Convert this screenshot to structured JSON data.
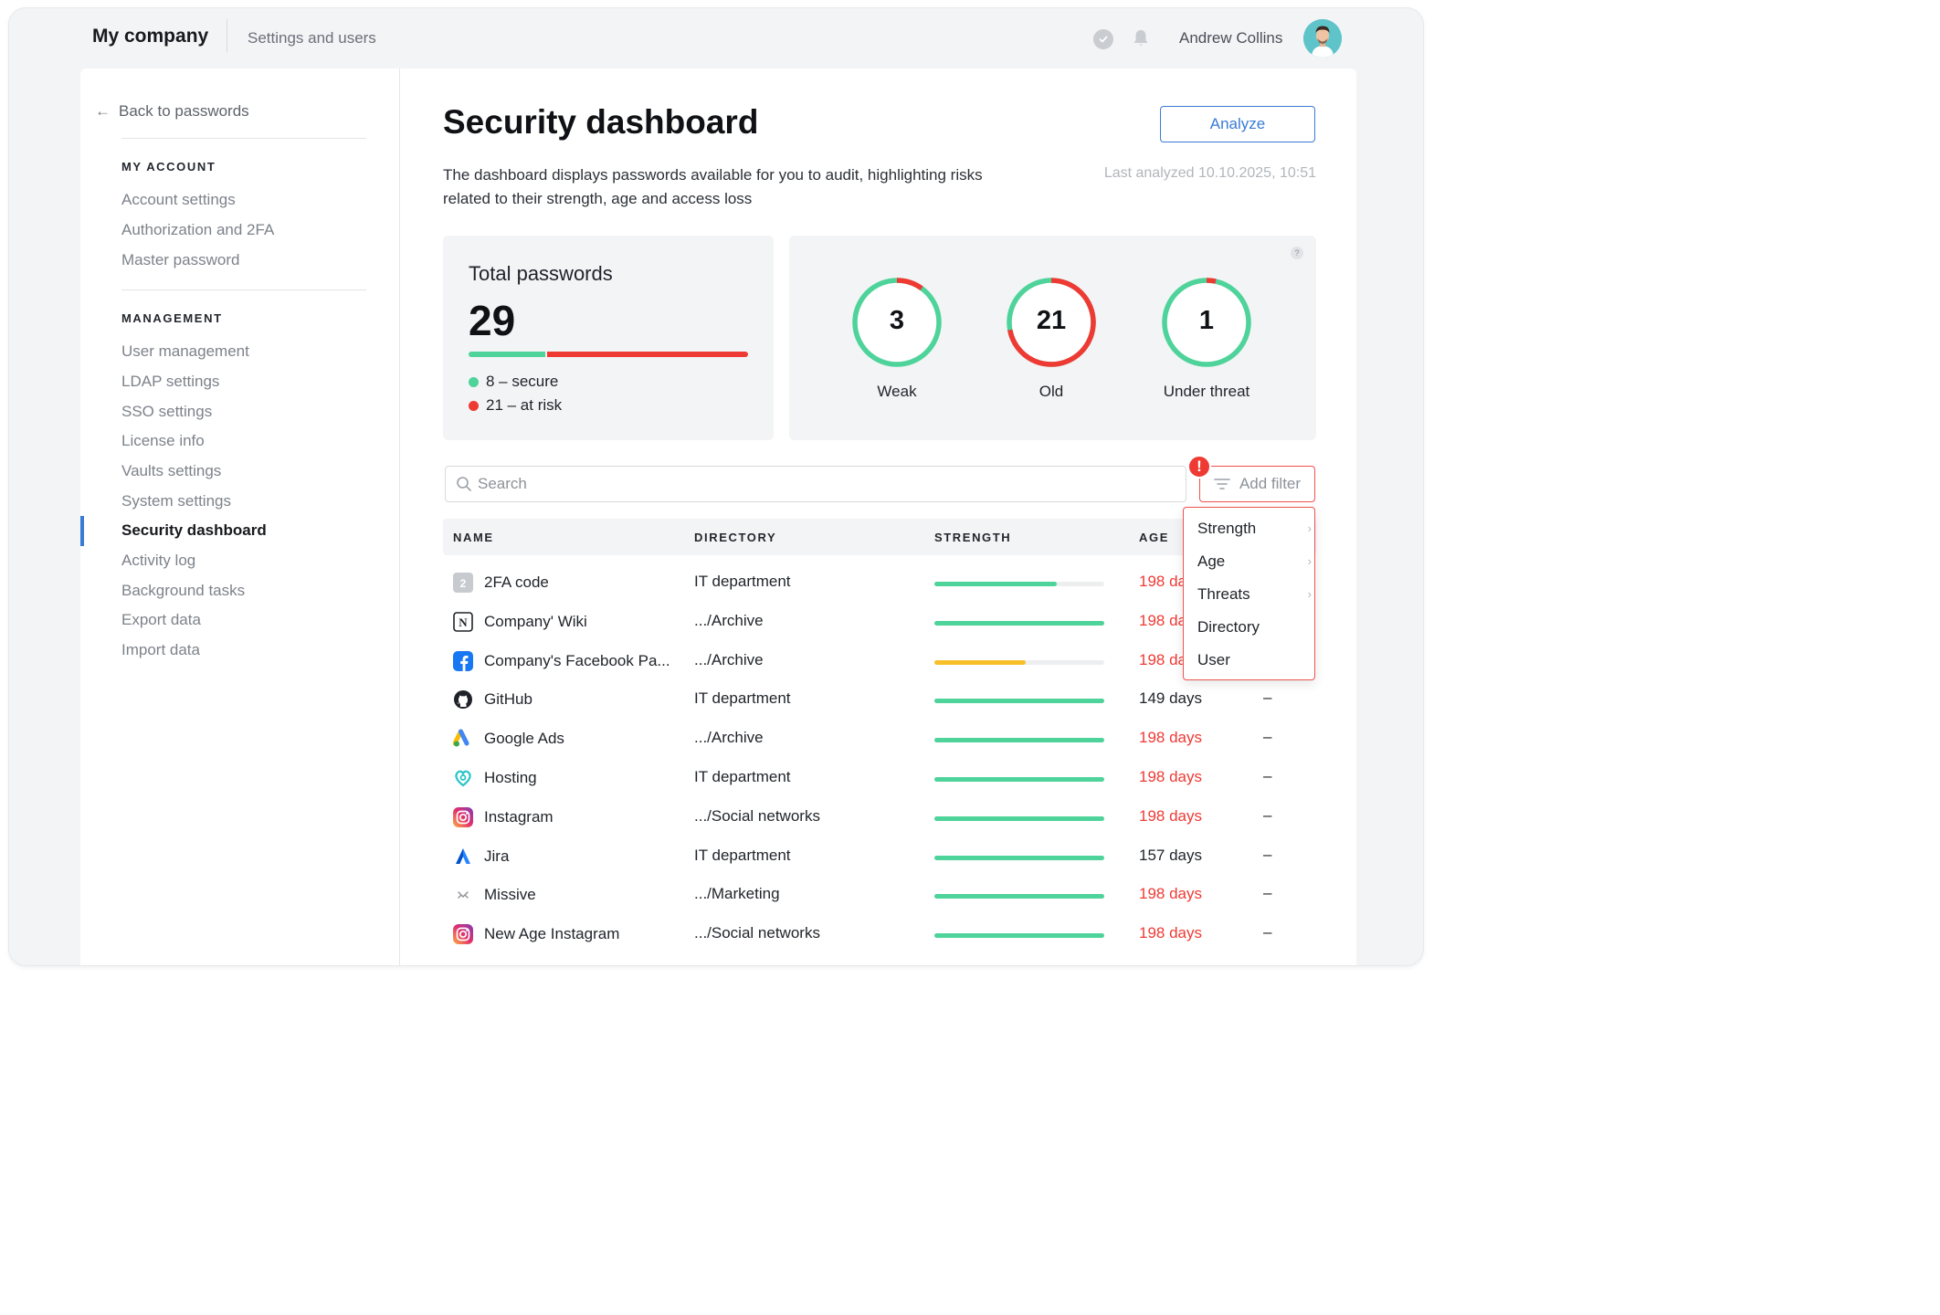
{
  "header": {
    "company": "My company",
    "section": "Settings and users",
    "user_name": "Andrew Collins"
  },
  "sidebar": {
    "back_label": "Back to passwords",
    "my_account_heading": "MY ACCOUNT",
    "my_account_items": [
      "Account settings",
      "Authorization and 2FA",
      "Master password"
    ],
    "management_heading": "MANAGEMENT",
    "management_items": [
      "User management",
      "LDAP settings",
      "SSO settings",
      "License info",
      "Vaults settings",
      "System settings",
      "Security dashboard",
      "Activity log",
      "Background tasks",
      "Export data",
      "Import data"
    ],
    "active_item": "Security dashboard"
  },
  "main": {
    "title": "Security dashboard",
    "analyze_label": "Analyze",
    "description": "The dashboard displays passwords available for you to audit, highlighting risks related to their strength, age and access loss",
    "last_analyzed": "Last analyzed 10.10.2025, 10:51",
    "total": {
      "label": "Total passwords",
      "value": "29",
      "secure": 8,
      "at_risk": 21,
      "secure_label": "8 – secure",
      "at_risk_label": "21 – at risk"
    },
    "help_label": "?",
    "rings": [
      {
        "value": "3",
        "label": "Weak",
        "risk_fraction": 0.1
      },
      {
        "value": "21",
        "label": "Old",
        "risk_fraction": 0.72
      },
      {
        "value": "1",
        "label": "Under threat",
        "risk_fraction": 0.035
      }
    ],
    "search_placeholder": "Search",
    "filter_label": "Add filter",
    "alert_label": "!",
    "columns": [
      "NAME",
      "DIRECTORY",
      "STRENGTH",
      "AGE"
    ],
    "rows": [
      {
        "icon": "2fa-icon",
        "name": "2FA code",
        "directory": "IT department",
        "strength": 0.72,
        "strength_color": "#4ed39a",
        "age": "198 days",
        "age_red": true,
        "threat": ""
      },
      {
        "icon": "notion-icon",
        "name": "Company' Wiki",
        "directory": ".../Archive",
        "strength": 1.0,
        "strength_color": "#4ed39a",
        "age": "198 days",
        "age_red": true,
        "threat": ""
      },
      {
        "icon": "facebook-icon",
        "name": "Company's Facebook Pa...",
        "directory": ".../Archive",
        "strength": 0.54,
        "strength_color": "#f7c02b",
        "age": "198 days",
        "age_red": true,
        "threat": ""
      },
      {
        "icon": "github-icon",
        "name": "GitHub",
        "directory": "IT department",
        "strength": 1.0,
        "strength_color": "#4ed39a",
        "age": "149 days",
        "age_red": false,
        "threat": "–"
      },
      {
        "icon": "google-ads-icon",
        "name": "Google Ads",
        "directory": ".../Archive",
        "strength": 1.0,
        "strength_color": "#4ed39a",
        "age": "198 days",
        "age_red": true,
        "threat": "–"
      },
      {
        "icon": "hosting-icon",
        "name": "Hosting",
        "directory": "IT department",
        "strength": 1.0,
        "strength_color": "#4ed39a",
        "age": "198 days",
        "age_red": true,
        "threat": "–"
      },
      {
        "icon": "instagram-icon",
        "name": "Instagram",
        "directory": ".../Social networks",
        "strength": 1.0,
        "strength_color": "#4ed39a",
        "age": "198 days",
        "age_red": true,
        "threat": "–"
      },
      {
        "icon": "jira-icon",
        "name": "Jira",
        "directory": "IT department",
        "strength": 1.0,
        "strength_color": "#4ed39a",
        "age": "157 days",
        "age_red": false,
        "threat": "–"
      },
      {
        "icon": "missive-icon",
        "name": "Missive",
        "directory": ".../Marketing",
        "strength": 1.0,
        "strength_color": "#4ed39a",
        "age": "198 days",
        "age_red": true,
        "threat": "–"
      },
      {
        "icon": "instagram-icon",
        "name": "New Age Instagram",
        "directory": ".../Social networks",
        "strength": 1.0,
        "strength_color": "#4ed39a",
        "age": "198 days",
        "age_red": true,
        "threat": "–"
      }
    ],
    "filter_menu": [
      {
        "label": "Strength",
        "submenu": true
      },
      {
        "label": "Age",
        "submenu": true
      },
      {
        "label": "Threats",
        "submenu": true
      },
      {
        "label": "Directory",
        "submenu": false
      },
      {
        "label": "User",
        "submenu": false
      }
    ]
  },
  "colors": {
    "accent": "#3a7bd5",
    "secure": "#4ed39a",
    "risk": "#ef3a34",
    "warning": "#f7c02b"
  }
}
